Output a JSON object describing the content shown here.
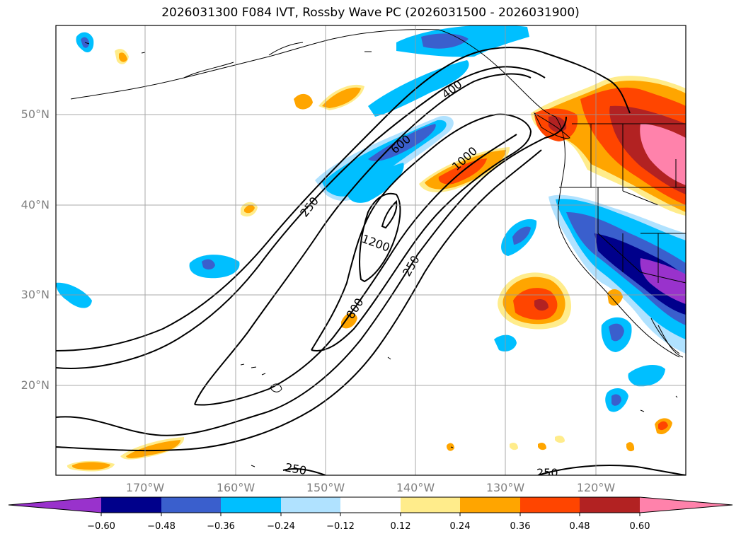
{
  "title": "2026031300 F084 IVT, Rossby Wave PC (2026031500 - 2026031900)",
  "lat_labels": [
    "50°N",
    "40°N",
    "30°N",
    "20°N"
  ],
  "lon_labels": [
    "170°W",
    "160°W",
    "150°W",
    "140°W",
    "130°W",
    "120°W"
  ],
  "contour_labels": [
    "400",
    "600",
    "1000",
    "250",
    "1200",
    "250",
    "800",
    "250",
    "250"
  ],
  "colorbar": {
    "ticks": [
      "−0.60",
      "−0.48",
      "−0.36",
      "−0.24",
      "−0.12",
      "0.12",
      "0.24",
      "0.36",
      "0.48",
      "0.60"
    ],
    "colors": [
      "#9932cc",
      "#00008b",
      "#3a5fcd",
      "#00bfff",
      "#b0e2ff",
      "#ffffff",
      "#ffec8b",
      "#ffa500",
      "#ff4500",
      "#b22222",
      "#ff82ab"
    ]
  },
  "colors": {
    "neg_dark": "#9932cc",
    "neg_navy": "#00008b",
    "neg_blue": "#3a5fcd",
    "neg_sky": "#00bfff",
    "neg_light": "#b0e2ff",
    "pos_yellow": "#ffec8b",
    "pos_orange": "#ffa500",
    "pos_red": "#ff4500",
    "pos_brick": "#b22222",
    "pos_pink": "#ff82ab"
  }
}
